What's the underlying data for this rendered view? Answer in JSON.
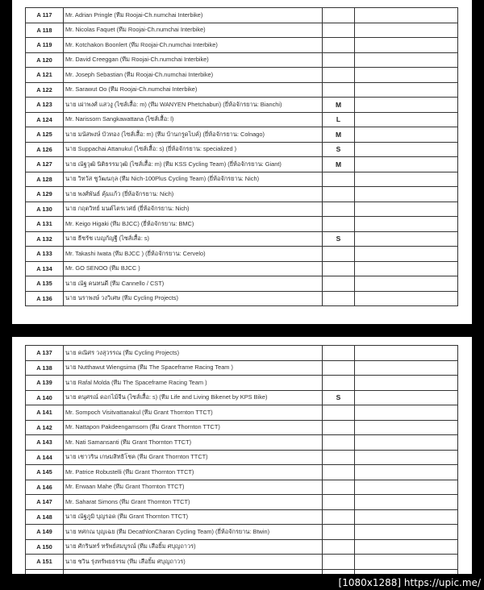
{
  "pages": [
    {
      "rows": [
        {
          "id": "A 117",
          "name": "Mr. Adrian Pringle (ทีม Roojai-Ch.numchai Interbike)",
          "size": ""
        },
        {
          "id": "A 118",
          "name": "Mr. Nicolas Faquet (ทีม Roojai-Ch.numchai Interbike)",
          "size": ""
        },
        {
          "id": "A 119",
          "name": "Mr. Kotchakon Boonlert (ทีม Roojai-Ch.numchai Interbike)",
          "size": ""
        },
        {
          "id": "A 120",
          "name": "Mr. David Creeggan (ทีม Roojai-Ch.numchai Interbike)",
          "size": ""
        },
        {
          "id": "A 121",
          "name": "Mr. Joseph Sebastian (ทีม Roojai-Ch.numchai Interbike)",
          "size": ""
        },
        {
          "id": "A 122",
          "name": "Mr. Sarawut Oo (ทีม Roojai-Ch.numchai Interbike)",
          "size": ""
        },
        {
          "id": "A 123",
          "name": "นาย เผ่าพงศ์ แสวงู (ไซส์เสื้อ: m) (ทีม WANYEN Phetchaburi) (ยี่ห้อจักรยาน: Bianchi)",
          "size": "M"
        },
        {
          "id": "A 124",
          "name": "Mr. Narissorn Sangkawattana (ไซส์เสื้อ: l)",
          "size": "L"
        },
        {
          "id": "A 125",
          "name": "นาย มนัสพงษ์ บัวทอง (ไซส์เสื้อ: m) (ทีม บ้านกรูดไบค์) (ยี่ห้อจักรยาน: Colnago)",
          "size": "M"
        },
        {
          "id": "A 126",
          "name": "นาย Suppachai Attanukul (ไซส์เสื้อ: s) (ยี่ห้อจักรยาน: specialized )",
          "size": "S"
        },
        {
          "id": "A 127",
          "name": "นาย ณัฐวุฒิ นิติธรรมวุฒิ (ไซส์เสื้อ: m) (ทีม KSS Cycling Team) (ยี่ห้อจักรยาน: Giant)",
          "size": "M"
        },
        {
          "id": "A 128",
          "name": "นาย วิทวัส ชูวัฒนกุล (ทีม Nich-100Plus Cycling Team) (ยี่ห้อจักรยาน: Nich)",
          "size": ""
        },
        {
          "id": "A 129",
          "name": "นาย พงศ์พันธ์ คุ้มแก้ว (ยี่ห้อจักรยาน: Nich)",
          "size": ""
        },
        {
          "id": "A 130",
          "name": "นาย กฤตวิทย์ มนต์ไตรเวศย์ (ยี่ห้อจักรยาน: Nich)",
          "size": ""
        },
        {
          "id": "A 131",
          "name": "Mr. Keigo Higaki (ทีม BJCC) (ยี่ห้อจักรยาน: BMC)",
          "size": ""
        },
        {
          "id": "A 132",
          "name": "นาย ธีชรัช เบญกัญฐี (ไซส์เสื้อ: s)",
          "size": "S"
        },
        {
          "id": "A 133",
          "name": "Mr. Takashi Iwata (ทีม BJCC ) (ยี่ห้อจักรยาน: Cervelo)",
          "size": ""
        },
        {
          "id": "A 134",
          "name": "Mr. GO SENOO (ทีม BJCC )",
          "size": ""
        },
        {
          "id": "A 135",
          "name": "นาย ณัฐ คนทนดี (ทีม Cannello / CST)",
          "size": ""
        },
        {
          "id": "A 136",
          "name": "นาย นราพงษ์ วงวิเศษ (ทีม Cycling Projects)",
          "size": ""
        }
      ]
    },
    {
      "rows": [
        {
          "id": "A 137",
          "name": "นาย คณิศร วงสุวรรณ (ทีม Cycling Projects)",
          "size": ""
        },
        {
          "id": "A 138",
          "name": "นาย Nutthawut Wiengsima (ทีม The Spaceframe Racing Team )",
          "size": ""
        },
        {
          "id": "A 139",
          "name": "นาย Rafal Molda (ทีม The Spaceframe Racing Team )",
          "size": ""
        },
        {
          "id": "A 140",
          "name": "นาย ตนุศรณ์ ดอกไม้จีน (ไซส์เสื้อ: s) (ทีม Life and Living Bikenet by KPS Bike)",
          "size": "S"
        },
        {
          "id": "A 141",
          "name": "Mr. Sompoch Visitvattanakul (ทีม Grant Thornton TTCT)",
          "size": ""
        },
        {
          "id": "A 142",
          "name": "Mr. Nattapon Pakdeengamsorn (ทีม Grant Thornton TTCT)",
          "size": ""
        },
        {
          "id": "A 143",
          "name": "Mr. Nati Samansanti (ทีม Grant Thornton TTCT)",
          "size": ""
        },
        {
          "id": "A 144",
          "name": "นาย เชาวริน เกษมสิทธิโชค (ทีม Grant Thornton TTCT)",
          "size": ""
        },
        {
          "id": "A 145",
          "name": "Mr. Patrice Robustelli (ทีม Grant Thornton TTCT)",
          "size": ""
        },
        {
          "id": "A 146",
          "name": "Mr. Erwaan Mahe (ทีม Grant Thornton TTCT)",
          "size": ""
        },
        {
          "id": "A 147",
          "name": "Mr. Saharat Simons (ทีม Grant Thornton TTCT)",
          "size": ""
        },
        {
          "id": "A 148",
          "name": "นาย ณัฐภูมิ บุญรอด (ทีม Grant Thornton TTCT)",
          "size": ""
        },
        {
          "id": "A 149",
          "name": "นาย ทศกณ บุญเฉย (ทีม DecathlonCharan Cycling Team) (ยี่ห้อจักรยาน: Btwin)",
          "size": ""
        },
        {
          "id": "A 150",
          "name": "นาย ศักรินทร์ ทรัพย์สมบูรณ์ (ทีม เสือยิ้ม ศบุญถาวร)",
          "size": ""
        },
        {
          "id": "A 151",
          "name": "นาย ชวิน รุ่งทรัพยธรรม (ทีม เสือยิ้ม ศบุญถาวร)",
          "size": ""
        }
      ]
    }
  ],
  "footer": {
    "watermark": "[1080x1288] https://upic.me/"
  }
}
